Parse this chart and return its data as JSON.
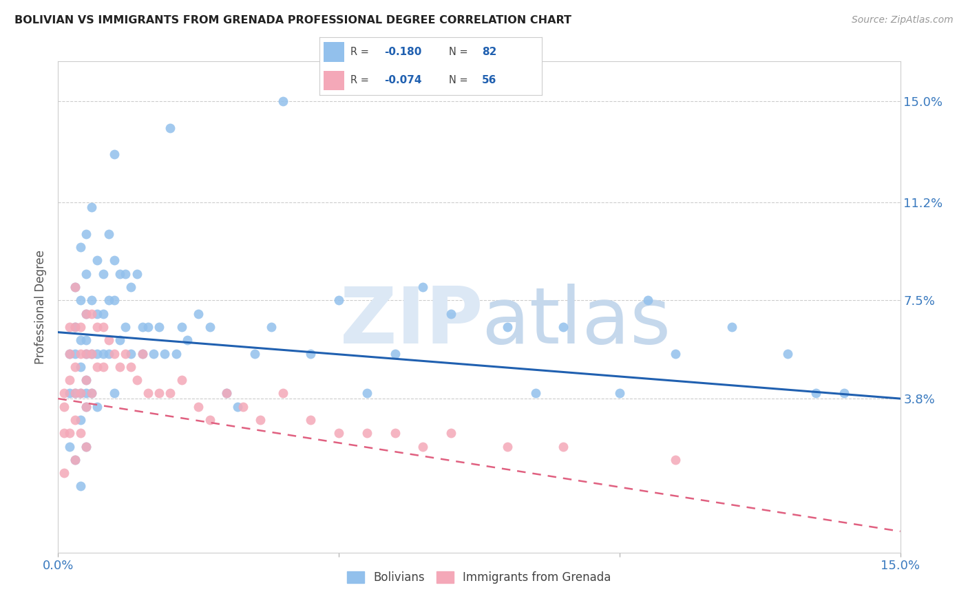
{
  "title": "BOLIVIAN VS IMMIGRANTS FROM GRENADA PROFESSIONAL DEGREE CORRELATION CHART",
  "source": "Source: ZipAtlas.com",
  "ylabel": "Professional Degree",
  "ytick_labels": [
    "15.0%",
    "11.2%",
    "7.5%",
    "3.8%"
  ],
  "ytick_values": [
    0.15,
    0.112,
    0.075,
    0.038
  ],
  "xlim": [
    0.0,
    0.15
  ],
  "ylim": [
    -0.02,
    0.165
  ],
  "color_blue": "#92C0EC",
  "color_pink": "#F4A8B8",
  "line_color_blue": "#2060B0",
  "line_color_pink": "#E06080",
  "bolivians_x": [
    0.002,
    0.002,
    0.002,
    0.003,
    0.003,
    0.003,
    0.003,
    0.003,
    0.004,
    0.004,
    0.004,
    0.004,
    0.004,
    0.004,
    0.004,
    0.005,
    0.005,
    0.005,
    0.005,
    0.005,
    0.005,
    0.005,
    0.005,
    0.005,
    0.006,
    0.006,
    0.006,
    0.006,
    0.007,
    0.007,
    0.007,
    0.007,
    0.008,
    0.008,
    0.008,
    0.009,
    0.009,
    0.009,
    0.01,
    0.01,
    0.01,
    0.01,
    0.011,
    0.011,
    0.012,
    0.012,
    0.013,
    0.013,
    0.014,
    0.015,
    0.015,
    0.016,
    0.017,
    0.018,
    0.019,
    0.02,
    0.021,
    0.022,
    0.023,
    0.025,
    0.027,
    0.03,
    0.032,
    0.035,
    0.038,
    0.04,
    0.045,
    0.05,
    0.055,
    0.06,
    0.065,
    0.07,
    0.08,
    0.085,
    0.09,
    0.1,
    0.105,
    0.11,
    0.12,
    0.13,
    0.135,
    0.14
  ],
  "bolivians_y": [
    0.055,
    0.04,
    0.02,
    0.08,
    0.065,
    0.055,
    0.04,
    0.015,
    0.095,
    0.075,
    0.06,
    0.05,
    0.04,
    0.03,
    0.005,
    0.1,
    0.085,
    0.07,
    0.06,
    0.055,
    0.045,
    0.04,
    0.035,
    0.02,
    0.11,
    0.075,
    0.055,
    0.04,
    0.09,
    0.07,
    0.055,
    0.035,
    0.085,
    0.07,
    0.055,
    0.1,
    0.075,
    0.055,
    0.13,
    0.09,
    0.075,
    0.04,
    0.085,
    0.06,
    0.085,
    0.065,
    0.08,
    0.055,
    0.085,
    0.065,
    0.055,
    0.065,
    0.055,
    0.065,
    0.055,
    0.14,
    0.055,
    0.065,
    0.06,
    0.07,
    0.065,
    0.04,
    0.035,
    0.055,
    0.065,
    0.15,
    0.055,
    0.075,
    0.04,
    0.055,
    0.08,
    0.07,
    0.065,
    0.04,
    0.065,
    0.04,
    0.075,
    0.055,
    0.065,
    0.055,
    0.04,
    0.04
  ],
  "grenada_x": [
    0.001,
    0.001,
    0.001,
    0.001,
    0.002,
    0.002,
    0.002,
    0.002,
    0.003,
    0.003,
    0.003,
    0.003,
    0.003,
    0.003,
    0.004,
    0.004,
    0.004,
    0.004,
    0.005,
    0.005,
    0.005,
    0.005,
    0.005,
    0.006,
    0.006,
    0.006,
    0.007,
    0.007,
    0.008,
    0.008,
    0.009,
    0.01,
    0.011,
    0.012,
    0.013,
    0.014,
    0.015,
    0.016,
    0.018,
    0.02,
    0.022,
    0.025,
    0.027,
    0.03,
    0.033,
    0.036,
    0.04,
    0.045,
    0.05,
    0.055,
    0.06,
    0.065,
    0.07,
    0.08,
    0.09,
    0.11
  ],
  "grenada_y": [
    0.04,
    0.035,
    0.025,
    0.01,
    0.065,
    0.055,
    0.045,
    0.025,
    0.08,
    0.065,
    0.05,
    0.04,
    0.03,
    0.015,
    0.065,
    0.055,
    0.04,
    0.025,
    0.07,
    0.055,
    0.045,
    0.035,
    0.02,
    0.07,
    0.055,
    0.04,
    0.065,
    0.05,
    0.065,
    0.05,
    0.06,
    0.055,
    0.05,
    0.055,
    0.05,
    0.045,
    0.055,
    0.04,
    0.04,
    0.04,
    0.045,
    0.035,
    0.03,
    0.04,
    0.035,
    0.03,
    0.04,
    0.03,
    0.025,
    0.025,
    0.025,
    0.02,
    0.025,
    0.02,
    0.02,
    0.015
  ]
}
